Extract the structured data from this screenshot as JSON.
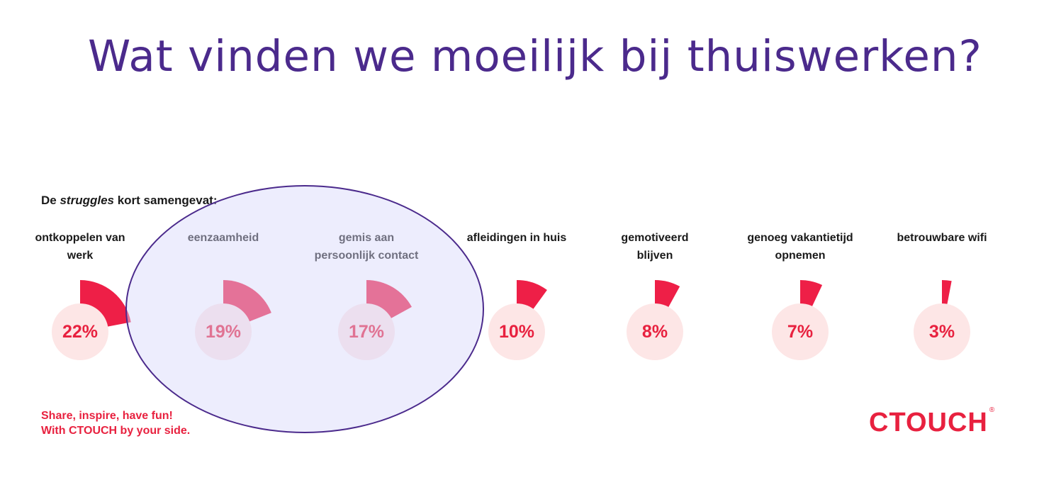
{
  "title": "Wat vinden we moeilijk bij thuiswerken?",
  "subtitle": {
    "pre": "De ",
    "em": "struggles",
    "post": " kort samengevat:"
  },
  "colors": {
    "accent": "#e8213f",
    "wedge": "#ee1f47",
    "disc": "#fde6e6",
    "title": "#4b2a8c"
  },
  "chart_data": {
    "type": "pie",
    "title": "",
    "unit": "%",
    "items": [
      {
        "label": [
          "ontkoppelen van",
          "werk"
        ],
        "value": 22,
        "display": "22%"
      },
      {
        "label": [
          "eenzaamheid"
        ],
        "value": 19,
        "display": "19%"
      },
      {
        "label": [
          "gemis aan",
          "persoonlijk contact"
        ],
        "value": 17,
        "display": "17%"
      },
      {
        "label": [
          "afleidingen in huis"
        ],
        "value": 10,
        "display": "10%"
      },
      {
        "label": [
          "gemotiveerd",
          "blijven"
        ],
        "value": 8,
        "display": "8%"
      },
      {
        "label": [
          "genoeg vakantietijd",
          "opnemen"
        ],
        "value": 7,
        "display": "7%"
      },
      {
        "label": [
          "betrouwbare wifi"
        ],
        "value": 3,
        "display": "3%"
      }
    ]
  },
  "footer": {
    "tagline_line1": "Share, inspire, have fun!",
    "tagline_line2": "With CTOUCH by your side.",
    "logo": "CTOUCH",
    "logo_mark": "®"
  }
}
